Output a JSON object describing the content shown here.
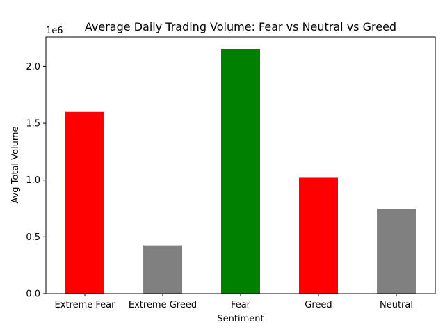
{
  "chart_data": {
    "type": "bar",
    "title": "Average Daily Trading Volume: Fear vs Neutral vs Greed",
    "xlabel": "Sentiment",
    "ylabel": "Avg Total Volume",
    "y_offset_text": "1e6",
    "categories": [
      "Extreme Fear",
      "Extreme Greed",
      "Fear",
      "Greed",
      "Neutral"
    ],
    "values": [
      1600000,
      425000,
      2155000,
      1020000,
      745000
    ],
    "colors": [
      "#ff0000",
      "#808080",
      "#008000",
      "#ff0000",
      "#808080"
    ],
    "ylim": [
      0,
      2260000
    ],
    "yticks": [
      0,
      500000,
      1000000,
      1500000,
      2000000
    ],
    "ytick_labels": [
      "0.0",
      "0.5",
      "1.0",
      "1.5",
      "2.0"
    ],
    "grid": false,
    "legend": "none"
  }
}
